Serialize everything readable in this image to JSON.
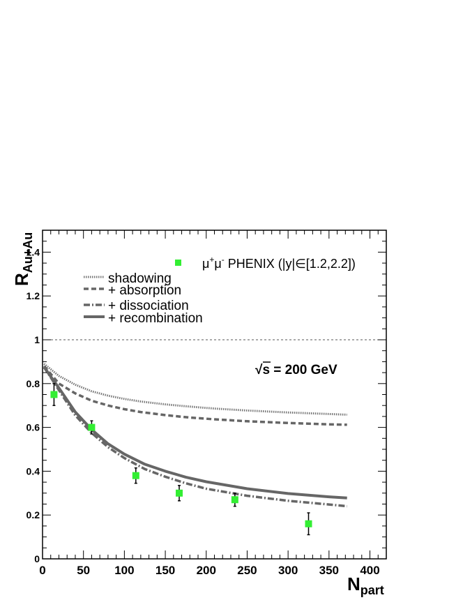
{
  "chart_data": {
    "type": "line",
    "xlabel_main": "N",
    "xlabel_sub": "part",
    "ylabel_main": "R",
    "ylabel_sub": "Au+Au",
    "annotation": "√s = 200 GeV",
    "annotation_root": "√",
    "annotation_rest": "s = 200 GeV",
    "xlim": [
      0,
      420
    ],
    "ylim": [
      0,
      1.5
    ],
    "x_ticks": [
      0,
      50,
      100,
      150,
      200,
      250,
      300,
      350,
      400
    ],
    "y_ticks": [
      0,
      0.2,
      0.4,
      0.6,
      0.8,
      1,
      1.2,
      1.4
    ],
    "y_tick_labels": [
      "0",
      "0.2",
      "0.4",
      "0.6",
      "0.8",
      "1",
      "1.2",
      "1.4"
    ],
    "reference_line": {
      "y": 1
    },
    "legend_placement": "top",
    "data_series": {
      "name": "μ+μ- PHENIX (|y|∈[1.2,2.2])",
      "label_mu1": "μ",
      "label_sup1": "+",
      "label_mu2": "μ",
      "label_sup2": "-",
      "label_rest": " PHENIX (|y|∈[1.2,2.2])",
      "color": "#33ee33",
      "points": [
        {
          "x": 14,
          "y": 0.75,
          "err": 0.05
        },
        {
          "x": 60,
          "y": 0.6,
          "err": 0.03
        },
        {
          "x": 114,
          "y": 0.38,
          "err": 0.035
        },
        {
          "x": 167,
          "y": 0.3,
          "err": 0.035
        },
        {
          "x": 235,
          "y": 0.27,
          "err": 0.03
        },
        {
          "x": 325,
          "y": 0.16,
          "err": 0.05
        }
      ]
    },
    "series": [
      {
        "name": "shadowing",
        "style": "dotted",
        "color": "#777777",
        "x": [
          2,
          20,
          40,
          60,
          80,
          100,
          120,
          150,
          180,
          210,
          250,
          300,
          350,
          372
        ],
        "y": [
          0.89,
          0.835,
          0.795,
          0.765,
          0.745,
          0.73,
          0.718,
          0.705,
          0.695,
          0.686,
          0.677,
          0.668,
          0.661,
          0.658
        ]
      },
      {
        "name": "+ absorption",
        "style": "dashed",
        "color": "#666666",
        "x": [
          2,
          20,
          40,
          60,
          80,
          100,
          120,
          150,
          180,
          210,
          250,
          300,
          350,
          372
        ],
        "y": [
          0.88,
          0.8,
          0.755,
          0.722,
          0.7,
          0.683,
          0.67,
          0.656,
          0.645,
          0.637,
          0.628,
          0.62,
          0.614,
          0.612
        ]
      },
      {
        "name": "+ dissociation",
        "style": "dashdot",
        "color": "#666666",
        "x": [
          2,
          20,
          40,
          60,
          80,
          100,
          125,
          150,
          175,
          200,
          250,
          300,
          350,
          372
        ],
        "y": [
          0.875,
          0.77,
          0.655,
          0.575,
          0.51,
          0.46,
          0.41,
          0.375,
          0.345,
          0.32,
          0.288,
          0.265,
          0.248,
          0.24
        ]
      },
      {
        "name": "+ recombination",
        "style": "solid",
        "color": "#666666",
        "x": [
          2,
          20,
          40,
          60,
          80,
          100,
          125,
          150,
          175,
          200,
          250,
          300,
          350,
          372
        ],
        "y": [
          0.875,
          0.78,
          0.67,
          0.59,
          0.525,
          0.478,
          0.432,
          0.4,
          0.373,
          0.352,
          0.32,
          0.298,
          0.283,
          0.278
        ]
      }
    ]
  }
}
